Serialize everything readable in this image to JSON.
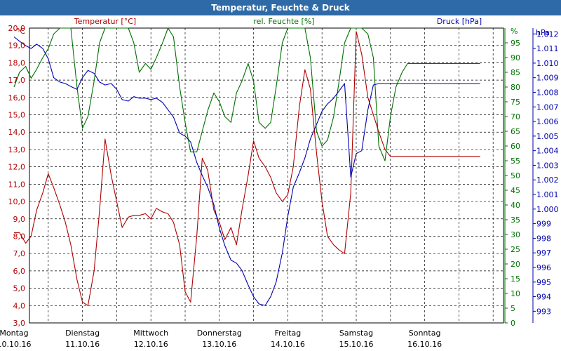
{
  "window": {
    "title": "Temperatur, Feuchte & Druck"
  },
  "chart_data": {
    "type": "line",
    "title": "Temperatur, Feuchte & Druck",
    "colors": {
      "temperature": "#b00000",
      "humidity": "#007000",
      "pressure": "#0000b0"
    },
    "grid": true,
    "axes": {
      "temperature": {
        "label": "Temperatur [°C]",
        "unit": "°C",
        "ylim": [
          3.0,
          20.0
        ],
        "ticks": [
          "20,0",
          "19,0",
          "18,0",
          "17,0",
          "16,0",
          "15,0",
          "14,0",
          "13,0",
          "12,0",
          "11,0",
          "10,0",
          "9,0",
          "8,0",
          "7,0",
          "6,0",
          "5,0",
          "4,0",
          "3,0"
        ]
      },
      "humidity": {
        "label": "rel. Feuchte [%]",
        "unit": "%",
        "ylim": [
          0,
          100
        ],
        "ticks": [
          "95",
          "90",
          "85",
          "80",
          "75",
          "70",
          "65",
          "60",
          "55",
          "50",
          "45",
          "40",
          "35",
          "30",
          "25",
          "20",
          "15",
          "10",
          "5",
          "0"
        ]
      },
      "pressure": {
        "label": "Druck [hPa]",
        "unit": "hPa",
        "ylim": [
          992.2,
          1012.4
        ],
        "ticks": [
          "1.012",
          "1.011",
          "1.010",
          "1.009",
          "1.008",
          "1.007",
          "1.006",
          "1.005",
          "1.004",
          "1.003",
          "1.002",
          "1.001",
          "1.000",
          "999",
          "998",
          "997",
          "996",
          "995",
          "994",
          "993"
        ]
      }
    },
    "x_categories": [
      {
        "day": "Montag",
        "date": "10.10.16"
      },
      {
        "day": "Dienstag",
        "date": "11.10.16"
      },
      {
        "day": "Mittwoch",
        "date": "12.10.16"
      },
      {
        "day": "Donnerstag",
        "date": "13.10.16"
      },
      {
        "day": "Freitag",
        "date": "14.10.16"
      },
      {
        "day": "Samstag",
        "date": "15.10.16"
      },
      {
        "day": "Sonntag",
        "date": "16.10.16"
      }
    ],
    "x_unit": "days since 10.10.16 00:00",
    "series": [
      {
        "name": "Temperatur [°C]",
        "axis": "temperature",
        "x": [
          0,
          0.08,
          0.17,
          0.25,
          0.33,
          0.42,
          0.5,
          0.58,
          0.67,
          0.75,
          0.83,
          0.92,
          1.0,
          1.08,
          1.17,
          1.25,
          1.33,
          1.42,
          1.5,
          1.58,
          1.67,
          1.75,
          1.83,
          1.92,
          2.0,
          2.08,
          2.17,
          2.25,
          2.33,
          2.42,
          2.5,
          2.58,
          2.67,
          2.75,
          2.83,
          2.92,
          3.0,
          3.08,
          3.17,
          3.25,
          3.33,
          3.42,
          3.5,
          3.58,
          3.67,
          3.75,
          3.83,
          3.92,
          4.0,
          4.08,
          4.17,
          4.25,
          4.33,
          4.42,
          4.5,
          4.58,
          4.67,
          4.75,
          4.83,
          4.92,
          5.0,
          5.08,
          5.17,
          5.25,
          5.33,
          5.42,
          5.5,
          5.58,
          5.67,
          5.75,
          5.83,
          5.92,
          6.0,
          6.08,
          6.17,
          6.25,
          6.33,
          6.42,
          6.5,
          6.58,
          6.67,
          6.75,
          6.81
        ],
        "values": [
          8.2,
          8.2,
          7.6,
          8.0,
          9.5,
          10.5,
          11.6,
          10.8,
          9.8,
          8.8,
          7.5,
          5.5,
          4.2,
          4.0,
          6.0,
          9.5,
          13.6,
          11.5,
          10.0,
          8.5,
          9.1,
          9.2,
          9.2,
          9.3,
          9.0,
          9.6,
          9.4,
          9.3,
          8.8,
          7.5,
          4.8,
          4.2,
          8.0,
          12.5,
          11.8,
          9.5,
          8.8,
          7.8,
          8.5,
          7.5,
          9.5,
          11.5,
          13.5,
          12.5,
          12.0,
          11.4,
          10.5,
          10.0,
          10.4,
          12.0,
          15.5,
          17.6,
          16.5,
          12.8,
          10.0,
          8.0,
          7.5,
          7.2,
          7.0,
          10.5,
          19.8,
          18.5,
          16.0,
          15.0,
          14.0,
          13.0,
          12.6,
          12.6,
          12.6,
          12.6,
          12.6,
          12.6,
          12.6,
          12.6,
          12.6,
          12.6,
          12.6,
          12.6,
          12.6,
          12.6,
          12.6,
          12.6,
          12.6
        ]
      },
      {
        "name": "rel. Feuchte [%]",
        "axis": "humidity",
        "x": [
          0,
          0.08,
          0.17,
          0.25,
          0.33,
          0.42,
          0.5,
          0.58,
          0.67,
          0.75,
          0.83,
          0.92,
          1.0,
          1.08,
          1.17,
          1.25,
          1.33,
          1.42,
          1.5,
          1.58,
          1.67,
          1.75,
          1.83,
          1.92,
          2.0,
          2.08,
          2.17,
          2.25,
          2.33,
          2.42,
          2.5,
          2.58,
          2.67,
          2.75,
          2.83,
          2.92,
          3.0,
          3.08,
          3.17,
          3.25,
          3.33,
          3.42,
          3.5,
          3.58,
          3.67,
          3.75,
          3.83,
          3.92,
          4.0,
          4.08,
          4.17,
          4.25,
          4.33,
          4.42,
          4.5,
          4.58,
          4.67,
          4.75,
          4.83,
          4.92,
          5.0,
          5.08,
          5.17,
          5.25,
          5.33,
          5.42,
          5.5,
          5.58,
          5.67,
          5.75,
          5.83,
          5.92,
          6.0,
          6.08,
          6.17,
          6.25,
          6.33,
          6.42,
          6.5,
          6.58,
          6.67,
          6.75,
          6.81
        ],
        "values": [
          80,
          85,
          87,
          83,
          86,
          90,
          93,
          98,
          100,
          100,
          100,
          80,
          66,
          70,
          82,
          95,
          100,
          100,
          100,
          100,
          100,
          95,
          85,
          88,
          86,
          90,
          95,
          100,
          97,
          80,
          68,
          58,
          58,
          65,
          72,
          78,
          75,
          70,
          68,
          78,
          82,
          88,
          82,
          68,
          66,
          68,
          80,
          95,
          100,
          100,
          100,
          100,
          90,
          65,
          60,
          62,
          70,
          82,
          95,
          100,
          100,
          100,
          98,
          90,
          60,
          55,
          70,
          80,
          85,
          88,
          88,
          88,
          88,
          88,
          88,
          88,
          88,
          88,
          88,
          88,
          88,
          88,
          88
        ]
      },
      {
        "name": "Druck [hPa]",
        "axis": "pressure",
        "x": [
          0,
          0.08,
          0.17,
          0.25,
          0.33,
          0.42,
          0.5,
          0.58,
          0.67,
          0.75,
          0.83,
          0.92,
          1.0,
          1.08,
          1.17,
          1.25,
          1.33,
          1.42,
          1.5,
          1.58,
          1.67,
          1.75,
          1.83,
          1.92,
          2.0,
          2.08,
          2.17,
          2.25,
          2.33,
          2.42,
          2.5,
          2.58,
          2.67,
          2.75,
          2.83,
          2.92,
          3.0,
          3.08,
          3.17,
          3.25,
          3.33,
          3.42,
          3.5,
          3.58,
          3.67,
          3.75,
          3.83,
          3.92,
          4.0,
          4.08,
          4.17,
          4.25,
          4.33,
          4.42,
          4.5,
          4.58,
          4.67,
          4.75,
          4.83,
          4.92,
          5.0,
          5.08,
          5.17,
          5.25,
          5.33,
          5.42,
          5.5,
          5.58,
          5.67,
          5.75,
          5.83,
          5.92,
          6.0,
          6.08,
          6.17,
          6.25,
          6.33,
          6.42,
          6.5,
          6.58,
          6.67,
          6.75,
          6.81
        ],
        "values": [
          1011.8,
          1011.5,
          1011.2,
          1011.0,
          1011.3,
          1011.0,
          1010.3,
          1009.0,
          1008.7,
          1008.6,
          1008.4,
          1008.2,
          1009.0,
          1009.5,
          1009.3,
          1008.7,
          1008.5,
          1008.6,
          1008.2,
          1007.5,
          1007.4,
          1007.7,
          1007.6,
          1007.6,
          1007.5,
          1007.6,
          1007.3,
          1006.8,
          1006.3,
          1005.2,
          1005.0,
          1004.6,
          1003.2,
          1002.3,
          1001.5,
          1000.3,
          998.7,
          997.5,
          996.5,
          996.3,
          995.8,
          994.8,
          994.0,
          993.5,
          993.4,
          994.0,
          995.0,
          997.0,
          999.5,
          1001.5,
          1002.5,
          1003.5,
          1004.8,
          1005.8,
          1006.7,
          1007.2,
          1007.6,
          1008.1,
          1008.6,
          1002.2,
          1003.8,
          1004.0,
          1006.8,
          1008.5,
          1008.6,
          1008.6,
          1008.6,
          1008.6,
          1008.6,
          1008.6,
          1008.6,
          1008.6,
          1008.6,
          1008.6,
          1008.6,
          1008.6,
          1008.6,
          1008.6,
          1008.6,
          1008.6,
          1008.6,
          1008.6,
          1008.6
        ]
      }
    ]
  }
}
